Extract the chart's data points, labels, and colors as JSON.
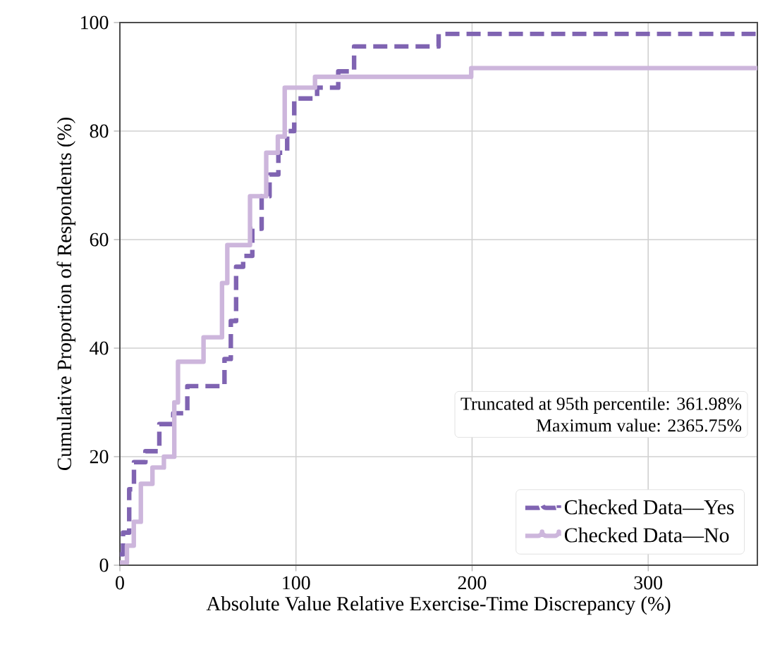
{
  "chart_data": {
    "type": "step",
    "xlabel": "Absolute Value Relative Exercise-Time Discrepancy (%)",
    "ylabel": "Cumulative Proportion of Respondents (%)",
    "xlim": [
      0,
      362
    ],
    "ylim": [
      0,
      100
    ],
    "xticks": [
      0,
      100,
      200,
      300
    ],
    "yticks": [
      0,
      20,
      40,
      60,
      80,
      100
    ],
    "grid": true,
    "legend": "bottom right",
    "annotations": [
      "Truncated at 95th percentile: 361.98%",
      "Maximum value: 2365.75%"
    ],
    "series": [
      {
        "name": "Checked Data—Yes",
        "color": "#8064b2",
        "line_style": "dashed",
        "x": [
          0,
          1.8,
          5.3,
          8,
          14.5,
          22.4,
          30.3,
          38.3,
          59.4,
          63,
          66,
          70,
          75.2,
          80.5,
          85,
          90,
          95,
          99,
          112,
          124,
          133,
          181,
          362
        ],
        "values": [
          2,
          6,
          14,
          19,
          21,
          26,
          28,
          33,
          38,
          45,
          55,
          57,
          62,
          68,
          72,
          76,
          80,
          86,
          88,
          91,
          95.6,
          97.9,
          97.9
        ]
      },
      {
        "name": "Checked Data—No",
        "color": "#cdb6dc",
        "line_style": "solid",
        "x": [
          0,
          4,
          7.9,
          11.9,
          18.5,
          25,
          30.9,
          33,
          47.5,
          58,
          61,
          73.9,
          83.1,
          89.7,
          93.6,
          110.8,
          199.5,
          362
        ],
        "values": [
          0.5,
          3.6,
          8,
          15,
          18,
          20,
          30,
          37.5,
          42,
          52,
          59,
          68,
          76,
          79,
          88,
          90,
          91.6,
          91.6
        ]
      }
    ]
  }
}
